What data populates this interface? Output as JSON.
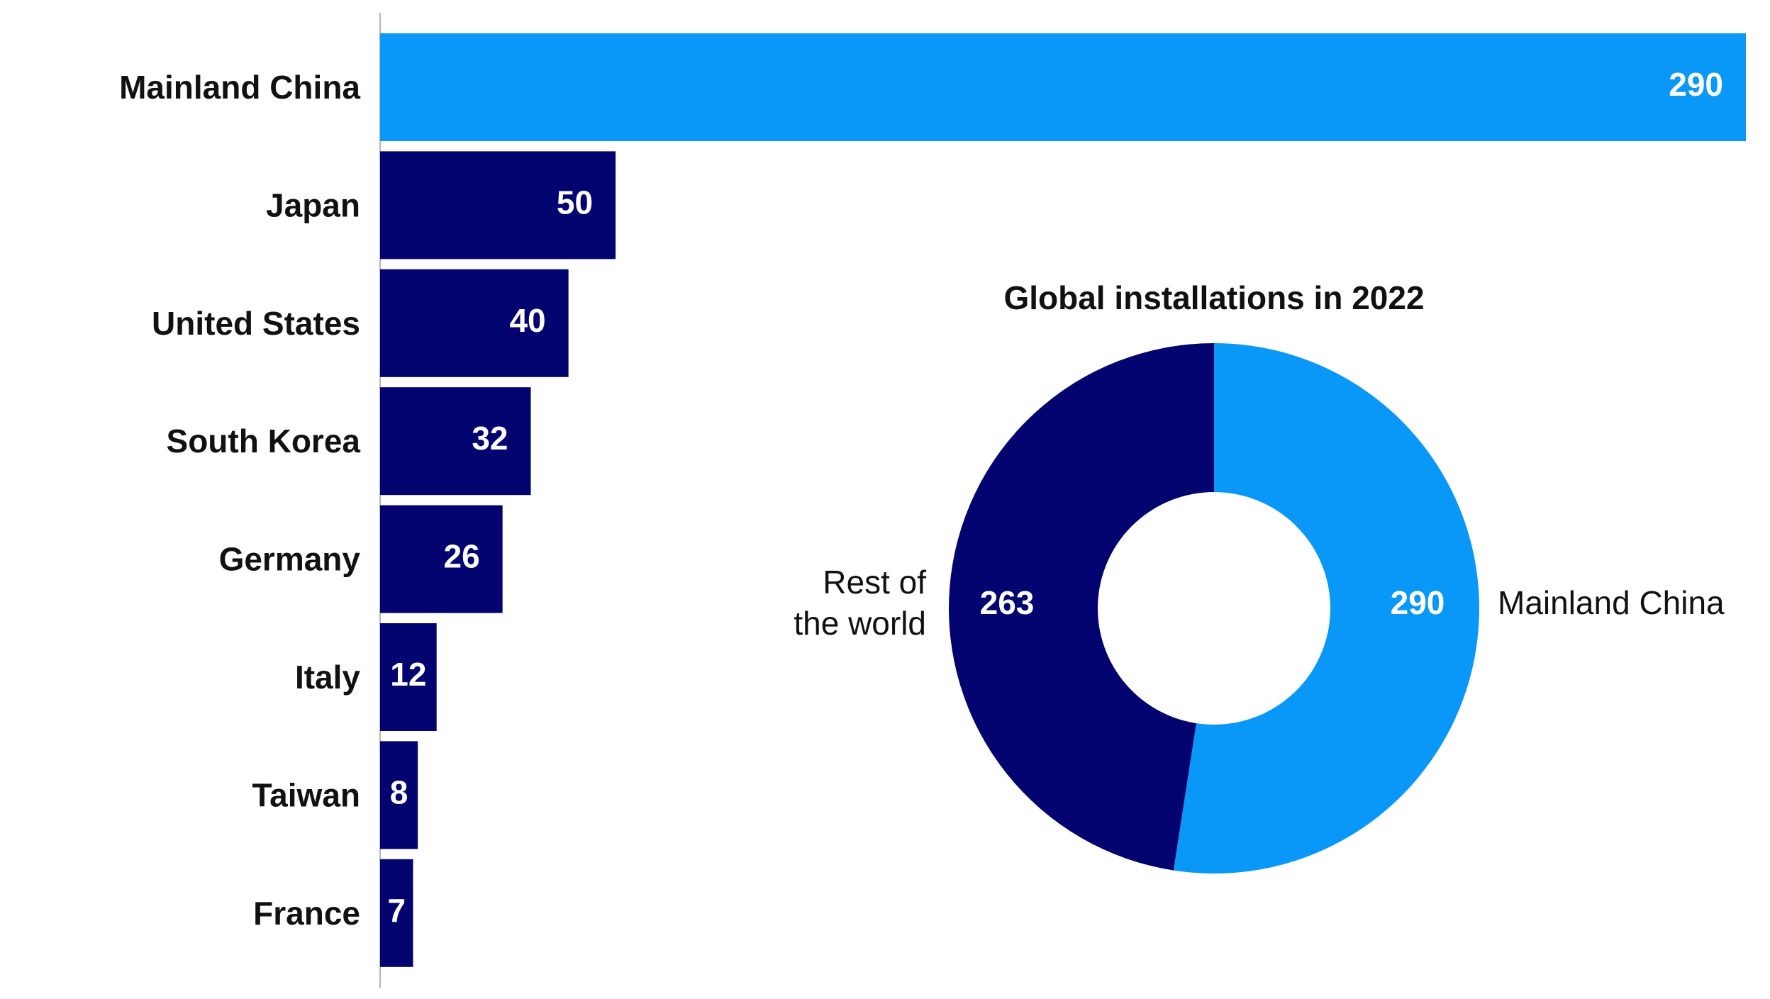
{
  "colors": {
    "highlight": "#0998f8",
    "primary": "#03046f",
    "axis": "#b5b5b5",
    "text": "#111111",
    "label_on_bar": "#ffffff"
  },
  "chart_data": [
    {
      "type": "bar",
      "orientation": "horizontal",
      "title": "",
      "xlabel": "",
      "ylabel": "",
      "xlim": [
        0,
        290
      ],
      "grid": false,
      "categories": [
        "Mainland China",
        "Japan",
        "United States",
        "South Korea",
        "Germany",
        "Italy",
        "Taiwan",
        "France"
      ],
      "values": [
        290,
        50,
        40,
        32,
        26,
        12,
        8,
        7
      ],
      "data_labels": [
        "290",
        "50",
        "40",
        "32",
        "26",
        "12",
        "8",
        "7"
      ],
      "highlighted_category": "Mainland China"
    },
    {
      "type": "pie",
      "variant": "donut",
      "title": "Global installations in 2022",
      "slices": [
        {
          "label": "Mainland China",
          "value": 290,
          "value_label": "290",
          "color": "#0998f8"
        },
        {
          "label": "Rest of the world",
          "label_lines": [
            "Rest of",
            "the world"
          ],
          "value": 263,
          "value_label": "263",
          "color": "#03046f"
        }
      ]
    }
  ]
}
